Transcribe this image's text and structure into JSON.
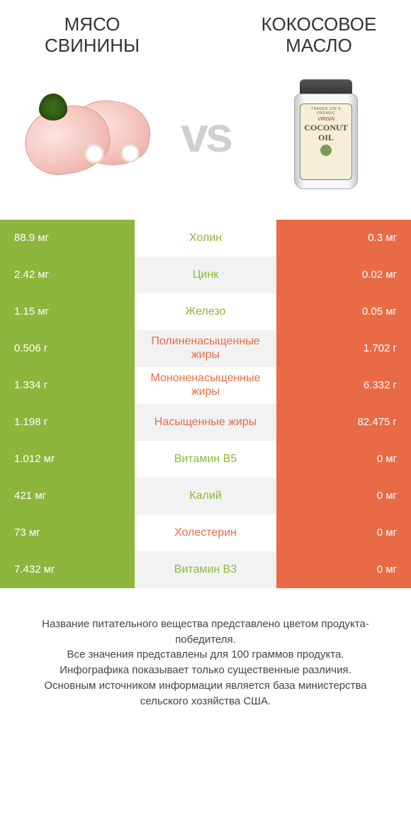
{
  "colors": {
    "green": "#8cb63c",
    "orange": "#e86b45",
    "vs": "#d0d0d0",
    "background": "#ffffff",
    "alt_row": "#f2f2f2",
    "text": "#333333",
    "footer_text": "#444444"
  },
  "typography": {
    "title_fontsize": 26,
    "vs_fontsize": 70,
    "row_value_fontsize": 15,
    "row_label_fontsize": 16,
    "footer_fontsize": 15
  },
  "header": {
    "left_title": "Мясо свинины",
    "right_title": "Кокосовое масло"
  },
  "vs_label": "vs",
  "jar_label": {
    "brand": "TRADER JOE'S",
    "organic": "ORGANIC",
    "virgin": "VIRGIN",
    "coconut": "COCONUT",
    "oil": "OIL"
  },
  "rows": [
    {
      "left": "88.9 мг",
      "mid": "Холин",
      "right": "0.3 мг",
      "winner": "left"
    },
    {
      "left": "2.42 мг",
      "mid": "Цинк",
      "right": "0.02 мг",
      "winner": "left"
    },
    {
      "left": "1.15 мг",
      "mid": "Железо",
      "right": "0.05 мг",
      "winner": "left"
    },
    {
      "left": "0.506 г",
      "mid": "Полиненасыщенные жиры",
      "right": "1.702 г",
      "winner": "right"
    },
    {
      "left": "1.334 г",
      "mid": "Мононенасыщенные жиры",
      "right": "6.332 г",
      "winner": "right"
    },
    {
      "left": "1.198 г",
      "mid": "Насыщенные жиры",
      "right": "82.475 г",
      "winner": "right"
    },
    {
      "left": "1.012 мг",
      "mid": "Витамин B5",
      "right": "0 мг",
      "winner": "left"
    },
    {
      "left": "421 мг",
      "mid": "Калий",
      "right": "0 мг",
      "winner": "left"
    },
    {
      "left": "73 мг",
      "mid": "Холестерин",
      "right": "0 мг",
      "winner": "right"
    },
    {
      "left": "7.432 мг",
      "mid": "Витамин B3",
      "right": "0 мг",
      "winner": "left"
    }
  ],
  "footer": {
    "line1": "Название питательного вещества представлено цветом продукта-победителя.",
    "line2": "Все значения представлены для 100 граммов продукта.",
    "line3": "Инфографика показывает только существенные различия.",
    "line4": "Основным источником информации является база министерства сельского хозяйства США."
  }
}
